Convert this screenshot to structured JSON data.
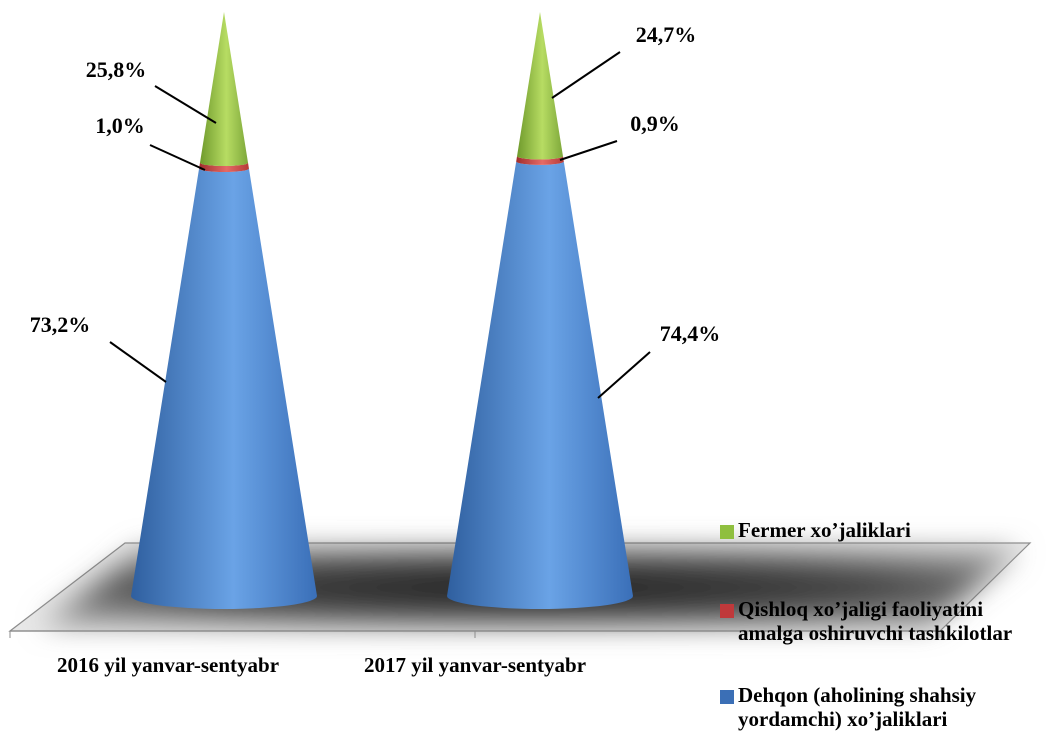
{
  "chart_data": {
    "type": "cone",
    "categories": [
      "2016 yil yanvar-sentyabr",
      "2017 yil yanvar-sentyabr"
    ],
    "series": [
      {
        "name": "Dehqon (aholining shahsiy yordamchi) xo’jaliklari",
        "values": [
          73.2,
          74.4
        ],
        "labels": [
          "73,2%",
          "74,4%"
        ],
        "color": "#4a86d4"
      },
      {
        "name": "Qishloq xo’jaligi faoliyatini amalga oshiruvchi tashkilotlar",
        "values": [
          1.0,
          0.9
        ],
        "labels": [
          "1,0%",
          "0,9%"
        ],
        "color": "#d9534f"
      },
      {
        "name": "Fermer xo’jaliklari",
        "values": [
          25.8,
          24.7
        ],
        "labels": [
          "25,8%",
          "24,7%"
        ],
        "color": "#8fbf3f"
      }
    ],
    "stacked": true,
    "legend_position": "right"
  },
  "legend": {
    "items": [
      {
        "label": "Fermer xo’jaliklari",
        "color": "#8fbf3f"
      },
      {
        "label": "Qishloq xo’jaligi faoliyatini amalga oshiruvchi tashkilotlar",
        "color": "#c0393b"
      },
      {
        "label": "Dehqon (aholining shahsiy yordamchi) xo’jaliklari",
        "color": "#3b6fb6"
      }
    ]
  }
}
